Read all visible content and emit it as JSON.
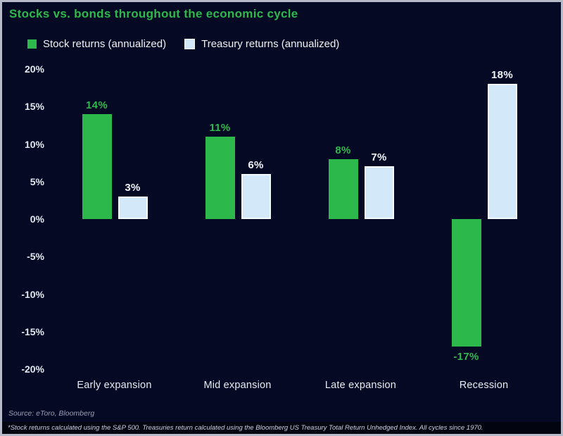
{
  "title": "Stocks vs. bonds throughout the economic cycle",
  "legend": {
    "items": [
      {
        "label": "Stock returns (annualized)",
        "color": "#2db84b"
      },
      {
        "label": "Treasury returns (annualized)",
        "color": "#d3e9fa"
      }
    ]
  },
  "chart_data": {
    "type": "bar",
    "categories": [
      "Early expansion",
      "Mid expansion",
      "Late expansion",
      "Recession"
    ],
    "series": [
      {
        "name": "Stock returns (annualized)",
        "color": "#2db84b",
        "values": [
          14,
          11,
          8,
          -17
        ],
        "labels": [
          "14%",
          "11%",
          "8%",
          "-17%"
        ]
      },
      {
        "name": "Treasury returns (annualized)",
        "color": "#d3e9fa",
        "values": [
          3,
          6,
          7,
          18
        ],
        "labels": [
          "3%",
          "6%",
          "7%",
          "18%"
        ]
      }
    ],
    "xlabel": "",
    "ylabel": "",
    "ylim": [
      -20,
      20
    ],
    "yticks": [
      {
        "value": 20,
        "label": "20%"
      },
      {
        "value": 15,
        "label": "15%"
      },
      {
        "value": 10,
        "label": "10%"
      },
      {
        "value": 5,
        "label": "5%"
      },
      {
        "value": 0,
        "label": "0%"
      },
      {
        "value": -5,
        "label": "-5%"
      },
      {
        "value": -10,
        "label": "-10%"
      },
      {
        "value": -15,
        "label": "-15%"
      },
      {
        "value": -20,
        "label": "-20%"
      }
    ],
    "grid": false,
    "legend_position": "top-left"
  },
  "footer": {
    "source": "Source: eToro, Bloomberg",
    "footnote": "*Stock returns calculated using the S&P 500. Treasuries return calculated using the Bloomberg US Treasury Total Return Unhedged Index. All cycles since 1970."
  },
  "colors": {
    "background": "#050923",
    "frame_border": "#b7bac8",
    "title": "#2fb94d",
    "stock_green": "#2db84b",
    "treasury_blue": "#d3e9fa",
    "treasury_bar_border": "#f2f9ff",
    "axis_text": "#e4e8f2",
    "source_text": "#9ba1b6",
    "footnote_bg": "#020410"
  }
}
